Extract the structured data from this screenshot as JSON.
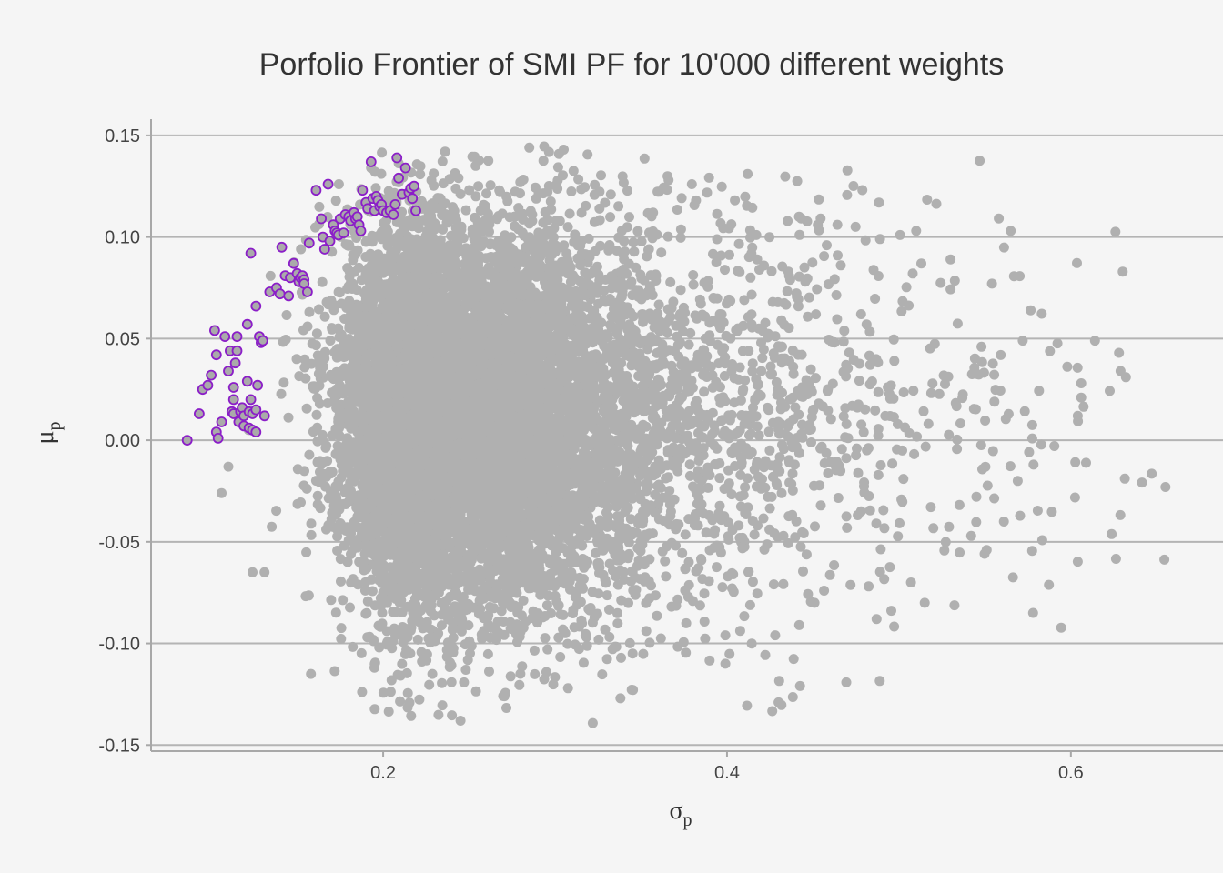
{
  "chart_data": {
    "type": "scatter",
    "title": "Porfolio Frontier of SMI PF for 10'000 different weights",
    "xlabel": "σ",
    "xlabel_sub": "p",
    "ylabel": "μ",
    "ylabel_sub": "p",
    "xlim": [
      0.065,
      0.68
    ],
    "ylim": [
      -0.153,
      0.158
    ],
    "x_ticks": [
      0.2,
      0.4,
      0.6
    ],
    "x_tick_labels": [
      "0.2",
      "0.4",
      "0.6"
    ],
    "y_ticks": [
      -0.15,
      -0.1,
      -0.05,
      0.0,
      0.05,
      0.1,
      0.15
    ],
    "y_tick_labels": [
      "-0.15",
      "-0.10",
      "-0.05",
      "0.00",
      "0.05",
      "0.10",
      "0.15"
    ],
    "grid": "horizontal major lines",
    "legend": "none",
    "series": [
      {
        "color": "#b0b0b0",
        "cloud": {
          "count": 10000,
          "center_x": 0.235,
          "center_y": 0.01,
          "sd_x": 0.055,
          "sd_y": 0.048,
          "x_range": [
            0.09,
            0.66
          ],
          "y_range": [
            -0.14,
            0.145
          ]
        },
        "outliers": [
          [
            0.655,
            -0.023
          ],
          [
            0.628,
            0.043
          ],
          [
            0.632,
            0.031
          ],
          [
            0.614,
            0.049
          ],
          [
            0.606,
            0.028
          ],
          [
            0.606,
            0.021
          ],
          [
            0.604,
            0.012
          ],
          [
            0.578,
            -0.085
          ],
          [
            0.565,
            0.103
          ],
          [
            0.572,
            0.049
          ],
          [
            0.561,
            -0.04
          ],
          [
            0.551,
            -0.054
          ],
          [
            0.548,
            0.046
          ],
          [
            0.53,
            0.089
          ],
          [
            0.51,
            0.103
          ],
          [
            0.513,
            0.087
          ],
          [
            0.508,
            0.082
          ],
          [
            0.515,
            -0.08
          ],
          [
            0.507,
            -0.07
          ],
          [
            0.489,
            0.099
          ],
          [
            0.487,
            -0.088
          ],
          [
            0.478,
            0.062
          ],
          [
            0.458,
            0.096
          ],
          [
            0.445,
            0.085
          ],
          [
            0.442,
            -0.091
          ],
          [
            0.43,
            -0.129
          ],
          [
            0.428,
            -0.096
          ],
          [
            0.412,
            0.131
          ],
          [
            0.399,
            -0.11
          ],
          [
            0.399,
            -0.096
          ],
          [
            0.382,
            0.118
          ],
          [
            0.366,
            0.128
          ],
          [
            0.357,
            0.112
          ],
          [
            0.338,
            -0.127
          ],
          [
            0.305,
            0.143
          ],
          [
            0.285,
            0.144
          ],
          [
            0.245,
            -0.138
          ],
          [
            0.236,
            0.142
          ],
          [
            0.158,
            -0.115
          ],
          [
            0.106,
            -0.026
          ],
          [
            0.11,
            -0.013
          ],
          [
            0.124,
            -0.065
          ],
          [
            0.131,
            -0.065
          ]
        ]
      },
      {
        "color": "#aaaaaa",
        "stroke": "#8b1ec8",
        "points": [
          [
            0.086,
            0.0
          ],
          [
            0.093,
            0.013
          ],
          [
            0.095,
            0.025
          ],
          [
            0.098,
            0.027
          ],
          [
            0.1,
            0.032
          ],
          [
            0.102,
            0.054
          ],
          [
            0.103,
            0.042
          ],
          [
            0.103,
            0.004
          ],
          [
            0.104,
            0.001
          ],
          [
            0.106,
            0.009
          ],
          [
            0.108,
            0.051
          ],
          [
            0.11,
            0.034
          ],
          [
            0.111,
            0.044
          ],
          [
            0.112,
            0.014
          ],
          [
            0.113,
            0.013
          ],
          [
            0.113,
            0.02
          ],
          [
            0.113,
            0.026
          ],
          [
            0.114,
            0.038
          ],
          [
            0.115,
            0.044
          ],
          [
            0.115,
            0.051
          ],
          [
            0.116,
            0.009
          ],
          [
            0.117,
            0.014
          ],
          [
            0.118,
            0.016
          ],
          [
            0.119,
            0.012
          ],
          [
            0.119,
            0.007
          ],
          [
            0.121,
            0.057
          ],
          [
            0.121,
            0.029
          ],
          [
            0.122,
            0.014
          ],
          [
            0.122,
            0.006
          ],
          [
            0.123,
            0.02
          ],
          [
            0.123,
            0.092
          ],
          [
            0.124,
            0.013
          ],
          [
            0.124,
            0.005
          ],
          [
            0.126,
            0.015
          ],
          [
            0.126,
            0.004
          ],
          [
            0.126,
            0.066
          ],
          [
            0.127,
            0.027
          ],
          [
            0.128,
            0.051
          ],
          [
            0.129,
            0.048
          ],
          [
            0.13,
            0.049
          ],
          [
            0.131,
            0.012
          ],
          [
            0.134,
            0.073
          ],
          [
            0.138,
            0.075
          ],
          [
            0.14,
            0.072
          ],
          [
            0.141,
            0.095
          ],
          [
            0.143,
            0.081
          ],
          [
            0.145,
            0.071
          ],
          [
            0.146,
            0.08
          ],
          [
            0.148,
            0.087
          ],
          [
            0.15,
            0.082
          ],
          [
            0.151,
            0.078
          ],
          [
            0.152,
            0.08
          ],
          [
            0.153,
            0.081
          ],
          [
            0.154,
            0.079
          ],
          [
            0.154,
            0.077
          ],
          [
            0.156,
            0.073
          ],
          [
            0.157,
            0.097
          ],
          [
            0.161,
            0.123
          ],
          [
            0.164,
            0.109
          ],
          [
            0.165,
            0.1
          ],
          [
            0.166,
            0.094
          ],
          [
            0.168,
            0.126
          ],
          [
            0.169,
            0.098
          ],
          [
            0.171,
            0.106
          ],
          [
            0.172,
            0.103
          ],
          [
            0.173,
            0.102
          ],
          [
            0.174,
            0.101
          ],
          [
            0.175,
            0.109
          ],
          [
            0.177,
            0.102
          ],
          [
            0.178,
            0.111
          ],
          [
            0.18,
            0.11
          ],
          [
            0.181,
            0.108
          ],
          [
            0.183,
            0.112
          ],
          [
            0.184,
            0.109
          ],
          [
            0.185,
            0.11
          ],
          [
            0.186,
            0.106
          ],
          [
            0.187,
            0.103
          ],
          [
            0.188,
            0.123
          ],
          [
            0.19,
            0.117
          ],
          [
            0.191,
            0.114
          ],
          [
            0.193,
            0.137
          ],
          [
            0.194,
            0.119
          ],
          [
            0.195,
            0.113
          ],
          [
            0.196,
            0.12
          ],
          [
            0.197,
            0.118
          ],
          [
            0.198,
            0.115
          ],
          [
            0.199,
            0.116
          ],
          [
            0.2,
            0.113
          ],
          [
            0.202,
            0.112
          ],
          [
            0.204,
            0.113
          ],
          [
            0.206,
            0.111
          ],
          [
            0.207,
            0.116
          ],
          [
            0.208,
            0.139
          ],
          [
            0.209,
            0.129
          ],
          [
            0.211,
            0.121
          ],
          [
            0.213,
            0.134
          ],
          [
            0.215,
            0.122
          ],
          [
            0.216,
            0.124
          ],
          [
            0.217,
            0.119
          ],
          [
            0.218,
            0.125
          ],
          [
            0.219,
            0.113
          ]
        ]
      }
    ]
  }
}
